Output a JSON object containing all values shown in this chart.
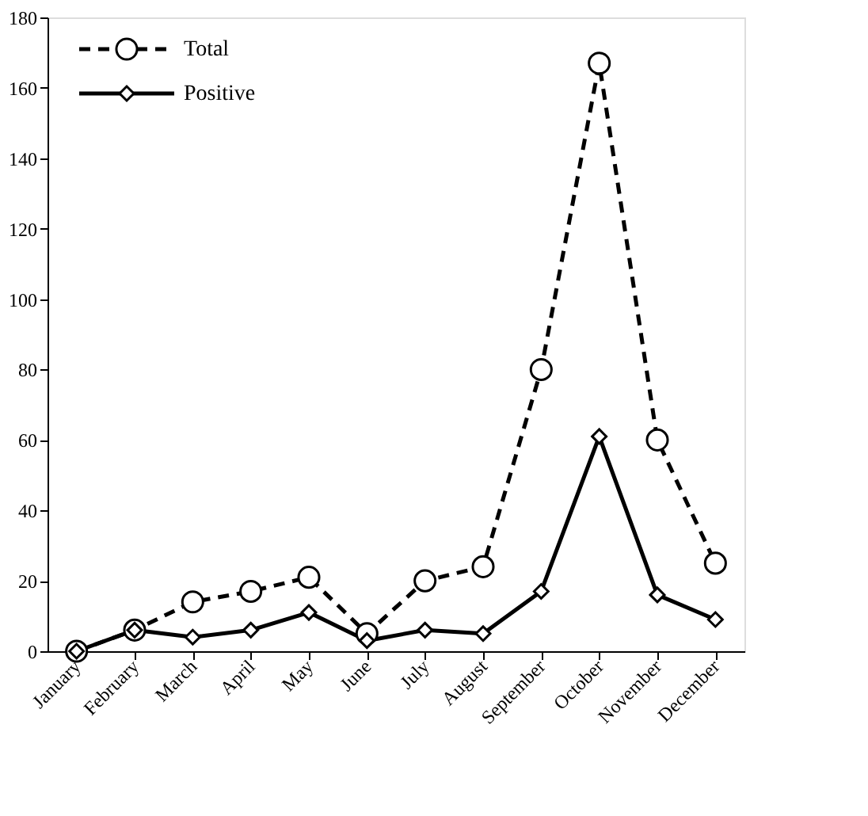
{
  "chart_data": {
    "type": "line",
    "categories": [
      "January",
      "February",
      "March",
      "April",
      "May",
      "June",
      "July",
      "August",
      "September",
      "October",
      "November",
      "December"
    ],
    "series": [
      {
        "name": "Total",
        "color": "#000000",
        "marker": "circle",
        "line_style": "dashed",
        "values": [
          0,
          6,
          14,
          17,
          21,
          5,
          20,
          24,
          80,
          167,
          60,
          25
        ]
      },
      {
        "name": "Positive",
        "color": "#000000",
        "marker": "diamond",
        "line_style": "solid",
        "values": [
          0,
          6,
          4,
          6,
          11,
          3,
          6,
          5,
          17,
          61,
          16,
          9
        ]
      }
    ],
    "ylim": [
      0,
      180
    ],
    "yticks": [
      0,
      20,
      40,
      60,
      80,
      100,
      120,
      140,
      160,
      180
    ],
    "grid": false,
    "legend": "top left"
  }
}
